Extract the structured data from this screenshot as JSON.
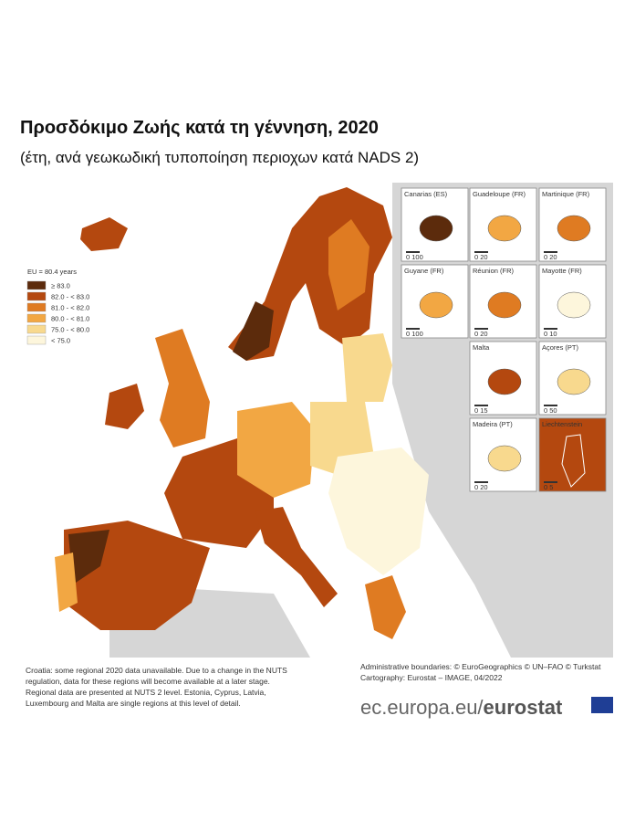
{
  "header": {
    "title": "Προσδόκιμο Ζωής κατά τη γέννηση, 2020",
    "subtitle": "(έτη, ανά γεωκωδική τυποποίηση περιοχων κατά NADS 2)"
  },
  "legend": {
    "title": "EU = 80.4 years",
    "items": [
      {
        "label": "≥ 83.0",
        "color": "#5c2b0c"
      },
      {
        "label": "82.0 - < 83.0",
        "color": "#b4480f"
      },
      {
        "label": "81.0 - < 82.0",
        "color": "#df7b22"
      },
      {
        "label": "80.0 - < 81.0",
        "color": "#f2a743"
      },
      {
        "label": "75.0 - < 80.0",
        "color": "#f8d98e"
      },
      {
        "label": "< 75.0",
        "color": "#fdf6dc"
      }
    ]
  },
  "insets": [
    {
      "name": "Canarias (ES)",
      "scale": "0  100",
      "color": "#5c2b0c"
    },
    {
      "name": "Guadeloupe (FR)",
      "scale": "0  20",
      "color": "#f2a743"
    },
    {
      "name": "Martinique (FR)",
      "scale": "0  20",
      "color": "#df7b22"
    },
    {
      "name": "Guyane (FR)",
      "scale": "0  100",
      "color": "#f2a743"
    },
    {
      "name": "Réunion (FR)",
      "scale": "0  20",
      "color": "#df7b22"
    },
    {
      "name": "Mayotte (FR)",
      "scale": "0  10",
      "color": "#fdf6dc"
    },
    {
      "name": "Malta",
      "scale": "0  15",
      "color": "#b4480f"
    },
    {
      "name": "Açores (PT)",
      "scale": "0  50",
      "color": "#f8d98e"
    },
    {
      "name": "Madeira (PT)",
      "scale": "0  20",
      "color": "#f8d98e"
    },
    {
      "name": "Liechtenstein",
      "scale": "0  5",
      "color": "#b4480f"
    }
  ],
  "footnote": [
    "Croatia: some regional 2020 data unavailable. Due to a change in the NUTS",
    "regulation, data for these regions will become available at a later stage.",
    "Regional data are presented at NUTS 2 level. Estonia, Cyprus, Latvia,",
    "Luxembourg and Malta are single regions at this level of detail."
  ],
  "credits": [
    "Administrative boundaries: © EuroGeographics © UN–FAO © Turkstat",
    "Cartography: Eurostat – IMAGE, 04/2022"
  ],
  "logo": {
    "site": "ec.europa.eu/",
    "brand": "eurostat"
  }
}
